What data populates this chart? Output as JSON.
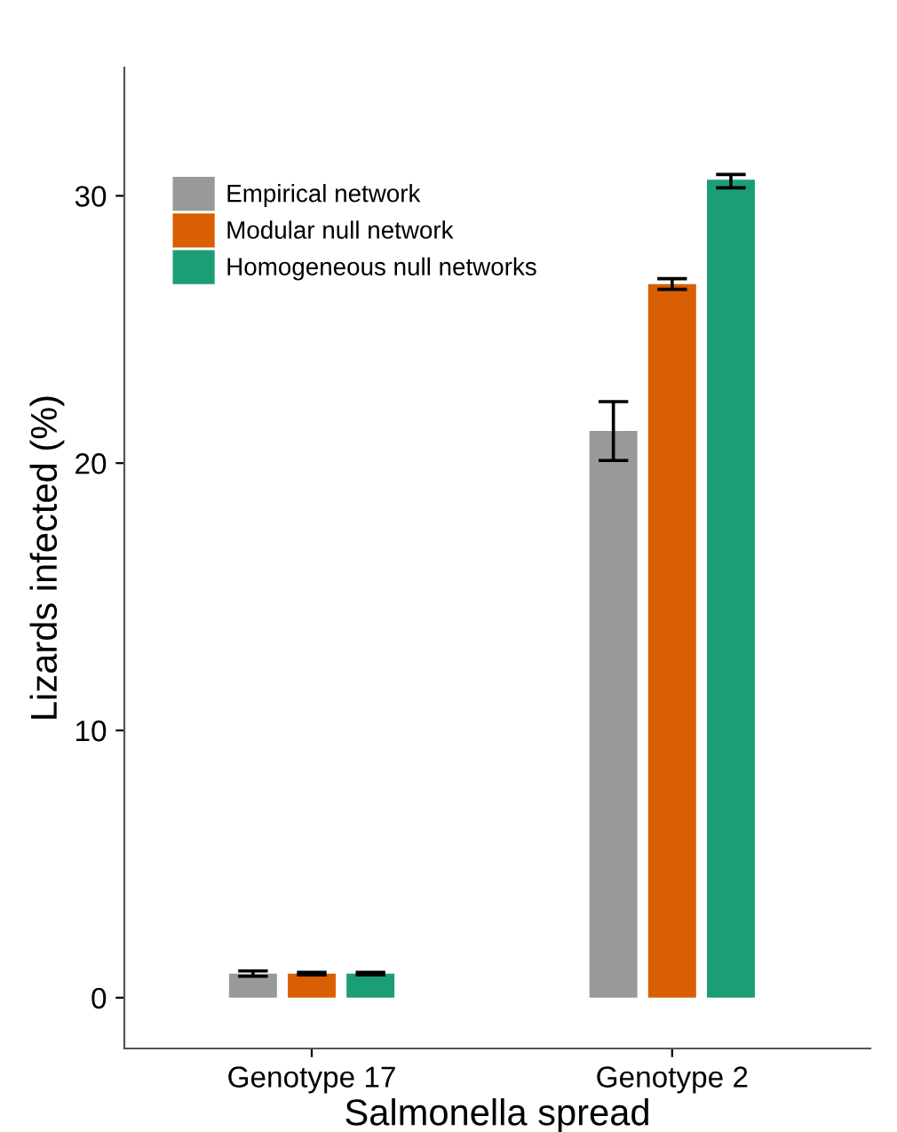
{
  "chart_data": {
    "type": "bar",
    "xlabel": "Salmonella spread",
    "ylabel": "Lizards infected (%)",
    "categories": [
      "Genotype 17",
      "Genotype 2"
    ],
    "series": [
      {
        "name": "Empirical network",
        "color": "#999999",
        "values": [
          0.9,
          21.2
        ],
        "errors": [
          0.1,
          [
            20.1,
            22.3
          ]
        ]
      },
      {
        "name": "Modular null network",
        "color": "#d95f02",
        "values": [
          0.9,
          26.7
        ],
        "errors": [
          0.05,
          [
            26.5,
            26.9
          ]
        ]
      },
      {
        "name": "Homogeneous null networks",
        "color": "#1b9e77",
        "values": [
          0.9,
          30.6
        ],
        "errors": [
          0.05,
          [
            30.3,
            30.8
          ]
        ]
      }
    ],
    "ylim": [
      -1.9,
      34.8
    ],
    "yticks": [
      0,
      10,
      20,
      30
    ],
    "grid": false,
    "legend": "top left"
  }
}
